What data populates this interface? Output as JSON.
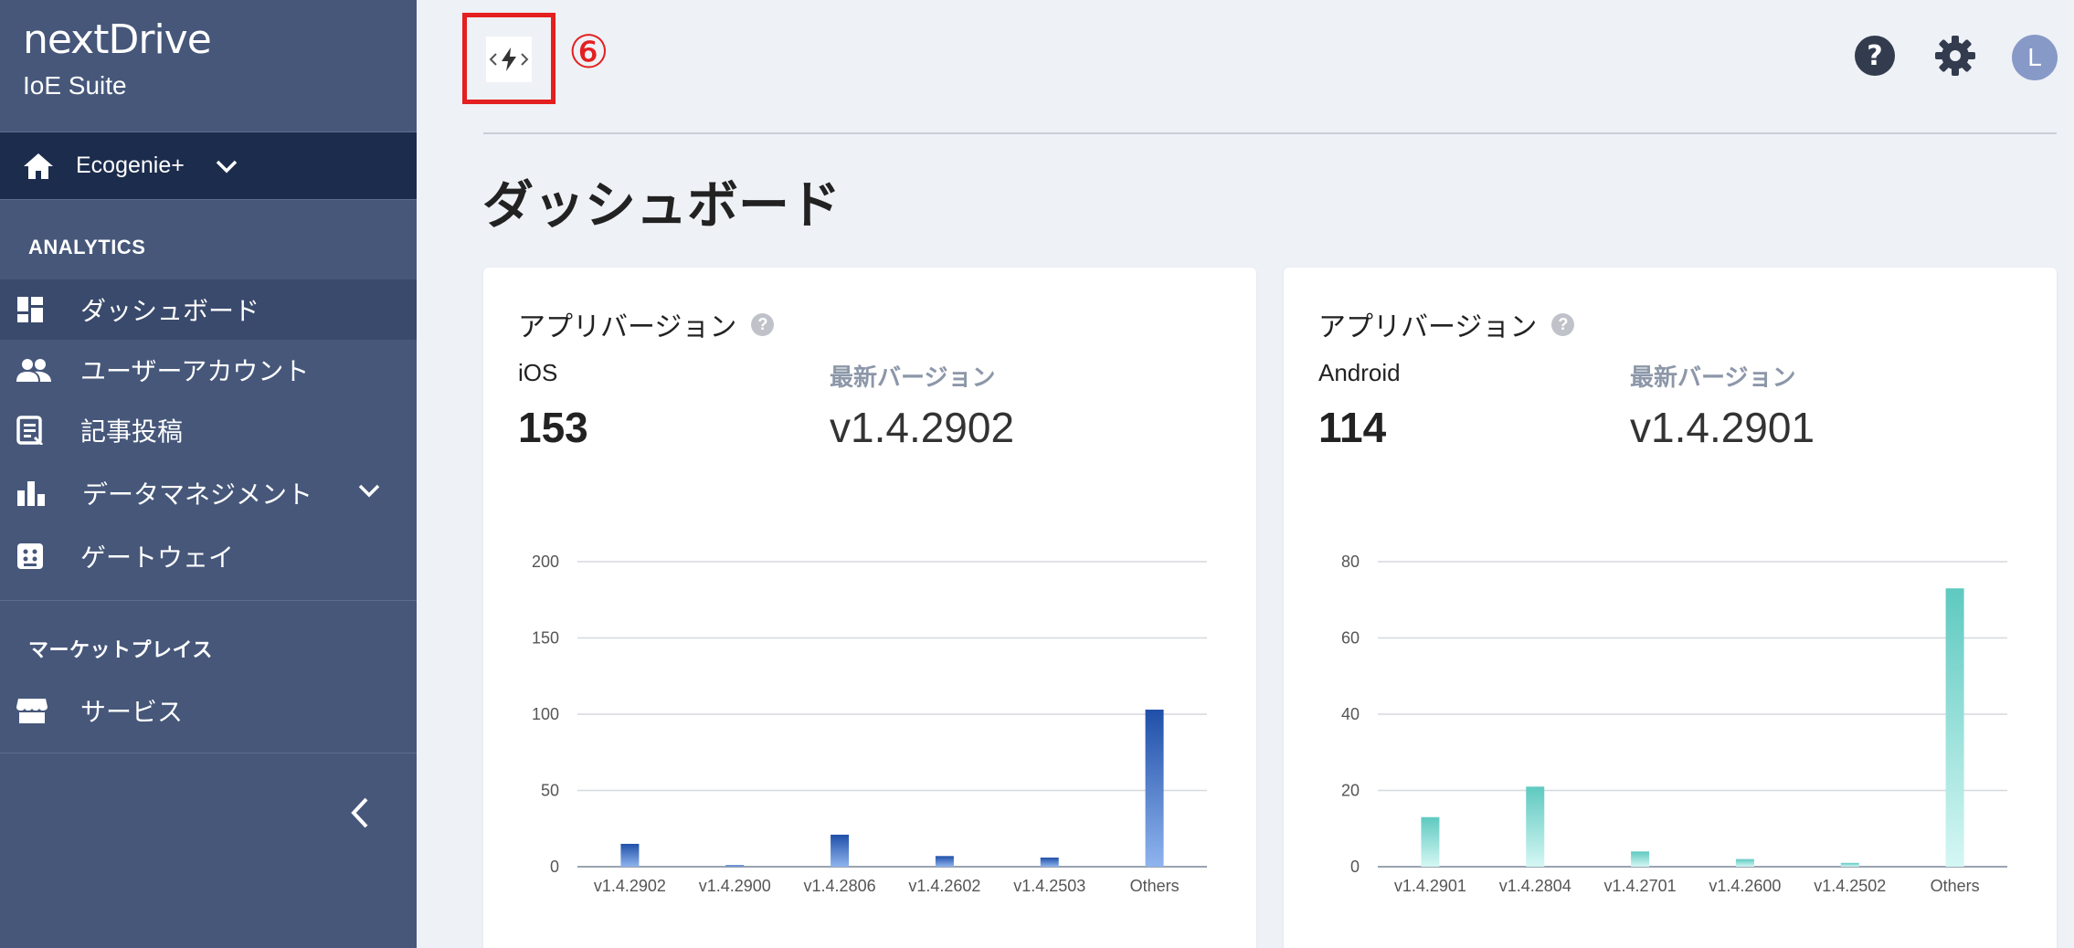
{
  "app": {
    "brand_logo": "nextDrive",
    "brand_sub": "IoE Suite",
    "workspace": "Ecogenie+",
    "callout": "⑥",
    "avatar_initial": "L"
  },
  "sidebar": {
    "analytics_title": "ANALYTICS",
    "items": [
      {
        "label": "ダッシュボード"
      },
      {
        "label": "ユーザーアカウント"
      },
      {
        "label": "記事投稿"
      },
      {
        "label": "データマネジメント"
      },
      {
        "label": "ゲートウェイ"
      }
    ],
    "market_title": "マーケットプレイス",
    "market_items": [
      {
        "label": "サービス"
      }
    ]
  },
  "page": {
    "title": "ダッシュボード"
  },
  "cards": [
    {
      "title": "アプリバージョン",
      "os": "iOS",
      "latest_label": "最新バージョン",
      "count": "153",
      "version": "v1.4.2902"
    },
    {
      "title": "アプリバージョン",
      "os": "Android",
      "latest_label": "最新バージョン",
      "count": "114",
      "version": "v1.4.2901"
    }
  ],
  "colors": {
    "ios_top": "#1f4fa8",
    "ios_bottom": "#8fb4ee",
    "android_top": "#5ec9c0",
    "android_bottom": "#d5f7f4"
  },
  "chart_data": [
    {
      "type": "bar",
      "categories": [
        "v1.4.2902",
        "v1.4.2900",
        "v1.4.2806",
        "v1.4.2602",
        "v1.4.2503",
        "Others"
      ],
      "values": [
        15,
        1,
        21,
        7,
        6,
        103
      ],
      "yticks": [
        "0",
        "50",
        "100",
        "150",
        "200"
      ],
      "ylim": [
        0,
        200
      ]
    },
    {
      "type": "bar",
      "categories": [
        "v1.4.2901",
        "v1.4.2804",
        "v1.4.2701",
        "v1.4.2600",
        "v1.4.2502",
        "Others"
      ],
      "values": [
        13,
        21,
        4,
        2,
        1,
        73
      ],
      "yticks": [
        "0",
        "20",
        "40",
        "60",
        "80"
      ],
      "ylim": [
        0,
        80
      ]
    }
  ]
}
